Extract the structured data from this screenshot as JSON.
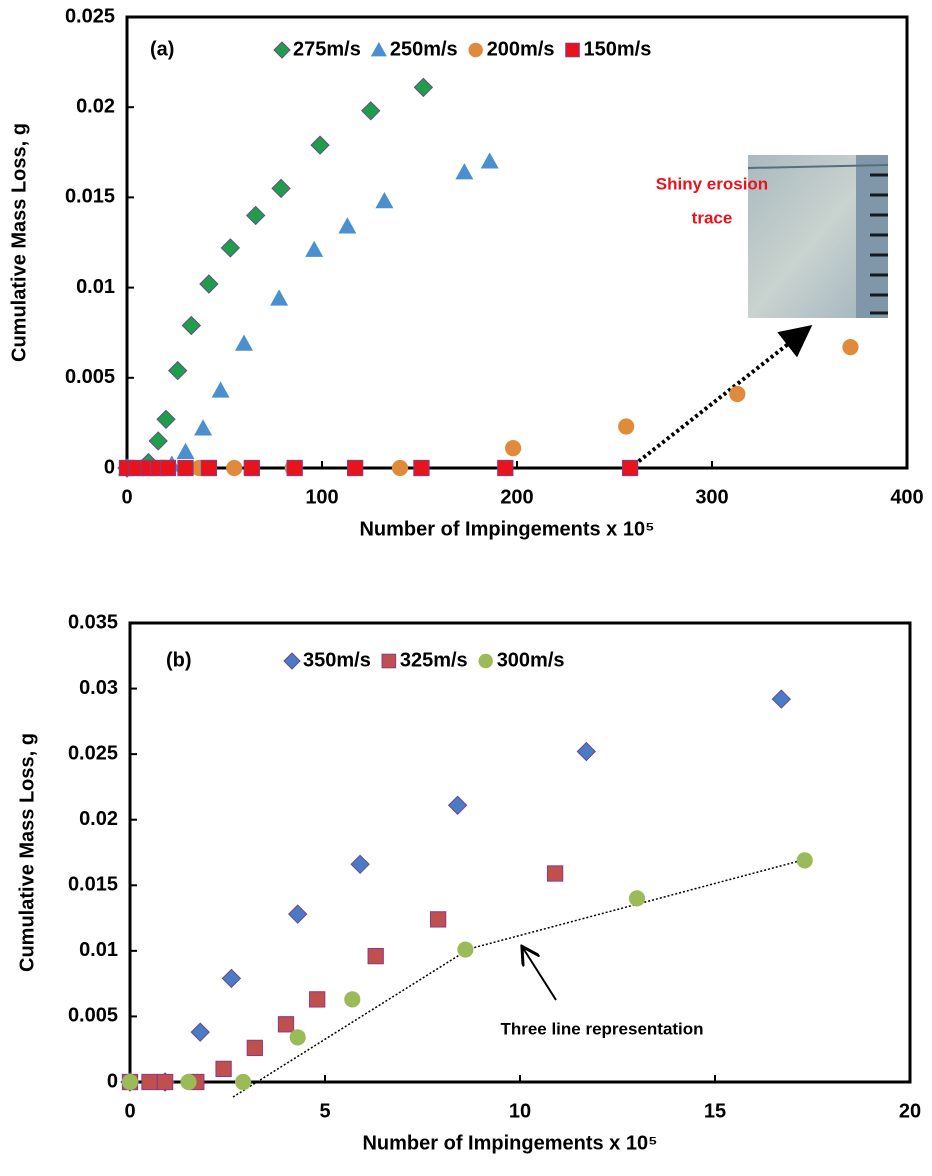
{
  "chart_data": [
    {
      "type": "scatter",
      "panel_label": "(a)",
      "x_label": "Number of Impingements x 10⁵",
      "y_label": "Cumulative Mass Loss, g",
      "xlim": [
        0,
        400
      ],
      "xticks": [
        0,
        100,
        200,
        300,
        400
      ],
      "ylim": [
        0,
        0.025
      ],
      "yticks": [
        0,
        0.005,
        0.01,
        0.015,
        0.02,
        0.025
      ],
      "annotation": [
        "Shiny erosion",
        "trace"
      ],
      "series": [
        {
          "name": "275m/s",
          "color": "#1f9e4a",
          "marker": "diamond",
          "x": [
            0,
            11,
            16,
            20,
            26,
            33,
            42,
            53,
            66,
            79,
            99,
            125,
            152
          ],
          "values": [
            0,
            0.0003,
            0.0015,
            0.0027,
            0.0054,
            0.0079,
            0.0102,
            0.0122,
            0.014,
            0.0155,
            0.0179,
            0.0198,
            0.0211
          ]
        },
        {
          "name": "250m/s",
          "color": "#4a90cf",
          "marker": "triangle",
          "x": [
            0,
            23,
            30,
            39,
            48,
            60,
            78,
            96,
            113,
            132,
            173,
            186
          ],
          "values": [
            0,
            0.0002,
            0.0009,
            0.0022,
            0.0043,
            0.0069,
            0.0094,
            0.0121,
            0.0134,
            0.0148,
            0.0164,
            0.017
          ]
        },
        {
          "name": "200m/s",
          "color": "#e08a3c",
          "marker": "circle",
          "x": [
            0,
            37,
            55,
            85,
            140,
            198,
            256,
            313,
            371
          ],
          "values": [
            0,
            0,
            0,
            0,
            0,
            0.0011,
            0.0023,
            0.0041,
            0.0067
          ]
        },
        {
          "name": "150m/s",
          "color": "#e8141c",
          "marker": "square",
          "x": [
            0,
            5,
            11,
            16,
            21,
            30,
            42,
            64,
            86,
            117,
            151,
            194,
            258
          ],
          "values": [
            0,
            0,
            0,
            0,
            0,
            0,
            0,
            0,
            0,
            0,
            0,
            0,
            0
          ]
        }
      ]
    },
    {
      "type": "scatter",
      "panel_label": "(b)",
      "x_label": "Number of Impingements x 10⁵",
      "y_label": "Cumulative Mass Loss, g",
      "xlim": [
        0,
        20
      ],
      "xticks": [
        0,
        5,
        10,
        15,
        20
      ],
      "ylim": [
        0,
        0.035
      ],
      "yticks": [
        0,
        0.005,
        0.01,
        0.015,
        0.02,
        0.025,
        0.03,
        0.035
      ],
      "annotation": [
        "Three line representation"
      ],
      "series": [
        {
          "name": "350m/s",
          "color": "#4a7bc4",
          "marker": "diamond",
          "x": [
            0,
            0.9,
            1.8,
            2.6,
            4.3,
            5.9,
            8.4,
            11.7,
            16.7
          ],
          "values": [
            0,
            0,
            0.0038,
            0.0079,
            0.0128,
            0.0166,
            0.0211,
            0.0252,
            0.0292
          ]
        },
        {
          "name": "325m/s",
          "color": "#c0504d",
          "marker": "square",
          "x": [
            0,
            0.5,
            0.9,
            1.7,
            2.4,
            3.2,
            4.0,
            4.8,
            6.3,
            7.9,
            10.9
          ],
          "values": [
            0,
            0,
            0,
            0,
            0.001,
            0.0026,
            0.0044,
            0.0063,
            0.0096,
            0.0124,
            0.0159
          ]
        },
        {
          "name": "300m/s",
          "color": "#9bbb59",
          "marker": "circle",
          "x": [
            0,
            1.5,
            2.9,
            4.3,
            5.7,
            8.6,
            13.0,
            17.3
          ],
          "values": [
            0,
            0,
            0,
            0.0034,
            0.0063,
            0.0101,
            0.014,
            0.0169
          ]
        }
      ]
    }
  ]
}
